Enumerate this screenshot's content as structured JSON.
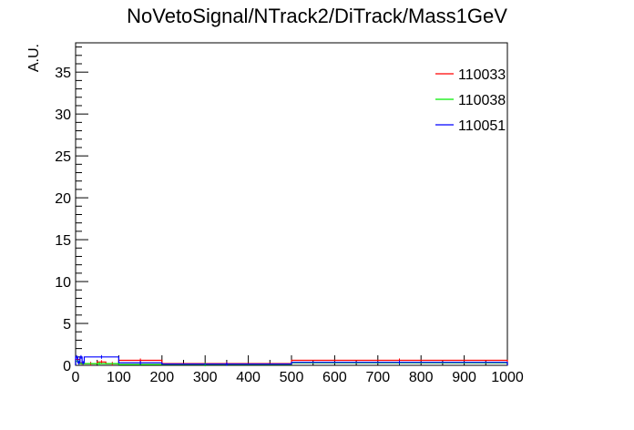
{
  "chart_data": {
    "type": "histogram",
    "title": "NoVetoSignal/NTrack2/DiTrack/Mass1GeV",
    "xlabel": "",
    "ylabel": "A.U.",
    "xlim": [
      0,
      1000
    ],
    "ylim": [
      0,
      38.5
    ],
    "x_ticks": [
      "0",
      "100",
      "200",
      "300",
      "400",
      "500",
      "600",
      "700",
      "800",
      "900",
      "1000"
    ],
    "y_ticks": [
      "0",
      "5",
      "10",
      "15",
      "20",
      "25",
      "30",
      "35"
    ],
    "legend_position": "top-right",
    "grid": false,
    "series": [
      {
        "name": "110033",
        "color": "#ff0000",
        "bins": [
          {
            "x0": 0,
            "x1": 10,
            "y": 0.7
          },
          {
            "x0": 10,
            "x1": 20,
            "y": 0.3
          },
          {
            "x0": 20,
            "x1": 50,
            "y": 0.2
          },
          {
            "x0": 50,
            "x1": 70,
            "y": 0.4
          },
          {
            "x0": 70,
            "x1": 100,
            "y": 0.2
          },
          {
            "x0": 100,
            "x1": 200,
            "y": 0.6
          },
          {
            "x0": 200,
            "x1": 500,
            "y": 0.2
          },
          {
            "x0": 500,
            "x1": 1000,
            "y": 0.6
          }
        ]
      },
      {
        "name": "110038",
        "color": "#00ee00",
        "bins": [
          {
            "x0": 0,
            "x1": 10,
            "y": 0.5
          },
          {
            "x0": 10,
            "x1": 100,
            "y": 0.2
          },
          {
            "x0": 100,
            "x1": 500,
            "y": 0.1
          },
          {
            "x0": 500,
            "x1": 1000,
            "y": 0.3
          }
        ]
      },
      {
        "name": "110051",
        "color": "#0000ff",
        "bins": [
          {
            "x0": 0,
            "x1": 5,
            "y": 1.0
          },
          {
            "x0": 5,
            "x1": 10,
            "y": 0.3
          },
          {
            "x0": 10,
            "x1": 15,
            "y": 1.0
          },
          {
            "x0": 15,
            "x1": 20,
            "y": 0.3
          },
          {
            "x0": 20,
            "x1": 100,
            "y": 1.0
          },
          {
            "x0": 100,
            "x1": 200,
            "y": 0.3
          },
          {
            "x0": 200,
            "x1": 500,
            "y": 0.15
          },
          {
            "x0": 500,
            "x1": 1000,
            "y": 0.35
          }
        ]
      }
    ]
  }
}
